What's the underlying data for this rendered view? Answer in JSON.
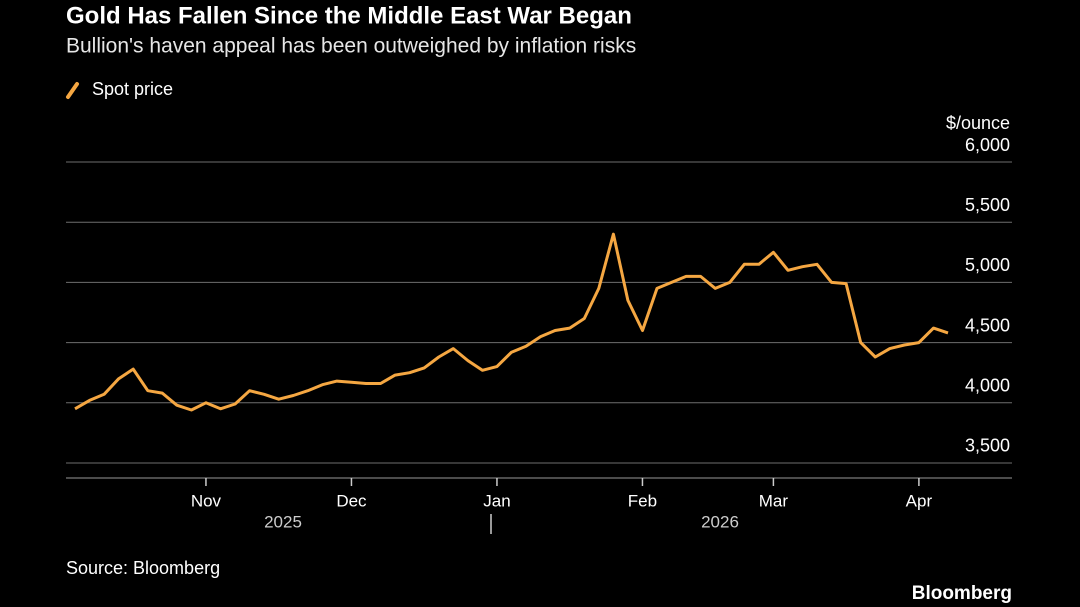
{
  "chart_data": {
    "type": "line",
    "title": "Gold Has Fallen Since the Middle East War Began",
    "subtitle": "Bullion's haven appeal has been outweighed by inflation risks",
    "y_label": "$/ounce",
    "source": "Source: Bloomberg",
    "brand": "Bloomberg",
    "legend": "top-left",
    "years": [
      "2025",
      "2026"
    ],
    "categories": [
      null,
      null,
      null,
      null,
      null,
      null,
      null,
      null,
      null,
      "Nov",
      null,
      null,
      null,
      null,
      null,
      null,
      null,
      null,
      null,
      "Dec",
      null,
      null,
      null,
      null,
      null,
      null,
      null,
      null,
      null,
      "Jan",
      null,
      null,
      null,
      null,
      null,
      null,
      null,
      null,
      null,
      "Feb",
      null,
      null,
      null,
      null,
      null,
      null,
      null,
      null,
      "Mar",
      null,
      null,
      null,
      null,
      null,
      null,
      null,
      null,
      null,
      "Apr",
      null,
      null
    ],
    "series": [
      {
        "name": "Spot price",
        "color": "#f5a742",
        "values": [
          3950,
          4020,
          4070,
          4200,
          4280,
          4100,
          4080,
          3980,
          3940,
          4000,
          3950,
          3990,
          4100,
          4070,
          4030,
          4060,
          4100,
          4150,
          4180,
          4170,
          4160,
          4160,
          4230,
          4250,
          4290,
          4380,
          4450,
          4350,
          4270,
          4300,
          4420,
          4470,
          4550,
          4600,
          4620,
          4700,
          4950,
          5400,
          4850,
          4600,
          4950,
          5000,
          5050,
          5050,
          4950,
          5000,
          5150,
          5150,
          5250,
          5100,
          5130,
          5150,
          5000,
          4990,
          4500,
          4380,
          4450,
          4480,
          4500,
          4620,
          4580
        ]
      }
    ],
    "ylim": [
      3375,
      6000
    ],
    "yticks": [
      {
        "value": 3500,
        "label": "3,500"
      },
      {
        "value": 4000,
        "label": "4,000"
      },
      {
        "value": 4500,
        "label": "4,500"
      },
      {
        "value": 5000,
        "label": "5,000"
      },
      {
        "value": 5500,
        "label": "5,500"
      },
      {
        "value": 6000,
        "label": "6,000"
      }
    ],
    "grid": true
  }
}
